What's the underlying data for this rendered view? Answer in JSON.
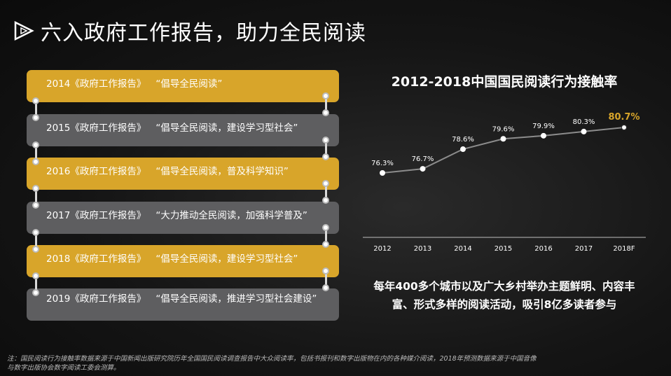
{
  "header": {
    "title": "六入政府工作报告，助力全民阅读"
  },
  "timeline": [
    {
      "year": "2014《政府工作报告》",
      "quote": "“倡导全民阅读”",
      "color": "#d8a52a"
    },
    {
      "year": "2015《政府工作报告》",
      "quote": "“倡导全民阅读，建设学习型社会”",
      "color": "#5e5e60"
    },
    {
      "year": "2016《政府工作报告》",
      "quote": "“倡导全民阅读，普及科学知识”",
      "color": "#d8a52a"
    },
    {
      "year": "2017《政府工作报告》",
      "quote": "“大力推动全民阅读，加强科学普及”",
      "color": "#5e5e60"
    },
    {
      "year": "2018《政府工作报告》",
      "quote": "“倡导全民阅读，建设学习型社会”",
      "color": "#d8a52a"
    },
    {
      "year": "2019《政府工作报告》",
      "quote": "“倡导全民阅读，推进学习型社会建设”",
      "color": "#5e5e60"
    }
  ],
  "chart_data": {
    "type": "line",
    "title": "2012-2018中国国民阅读行为接触率",
    "categories": [
      "2012",
      "2013",
      "2014",
      "2015",
      "2016",
      "2017",
      "2018F"
    ],
    "series": [
      {
        "values": [
          76.3,
          76.7,
          78.6,
          79.6,
          79.9,
          80.3,
          80.7
        ]
      }
    ],
    "labels": [
      "76.3%",
      "76.7%",
      "78.6%",
      "79.6%",
      "79.9%",
      "80.3%",
      "80.7%"
    ],
    "highlight_color": "#d8a52a"
  },
  "description": "每年400多个城市以及广大乡村举办主题鲜明、内容丰富、形式多样的阅读活动，吸引8亿多读者参与",
  "footnote": "注：国民阅读行为接触率数据来源于中国新闻出版研究院历年全国国民阅读调查报告中大众阅读率，包括书报刊和数字出版物在内的各种媒介阅读，2018年预测数据来源于中国音像与数字出版协会数字阅读工委会测算。"
}
